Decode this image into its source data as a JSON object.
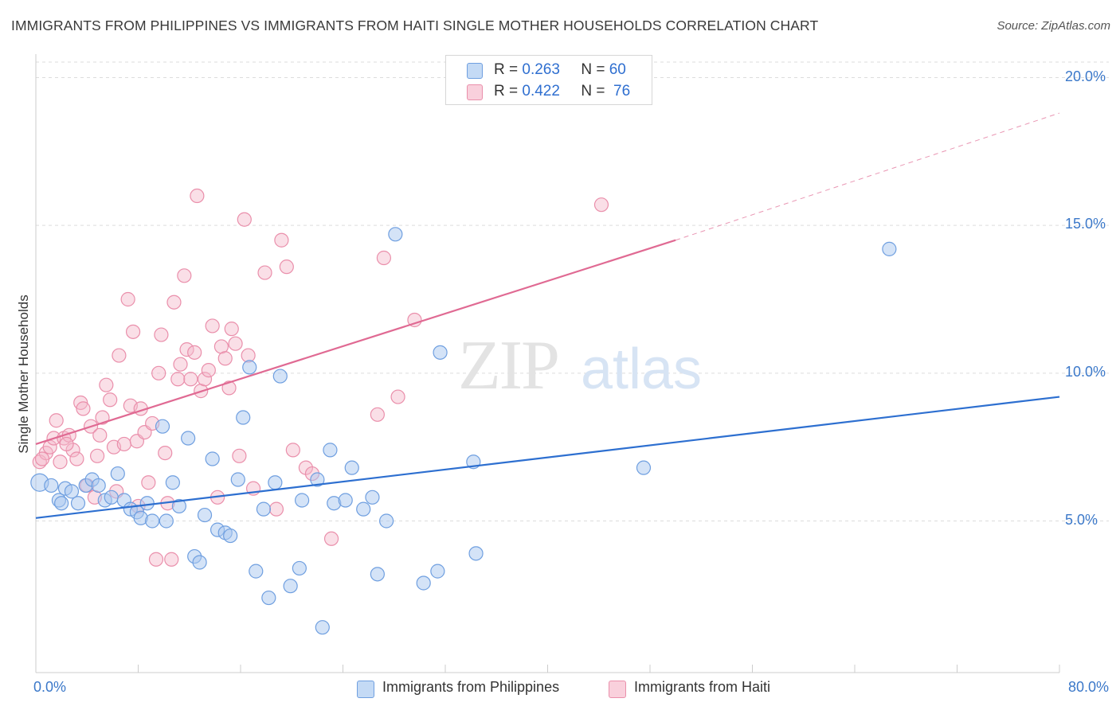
{
  "title": "IMMIGRANTS FROM PHILIPPINES VS IMMIGRANTS FROM HAITI SINGLE MOTHER HOUSEHOLDS CORRELATION CHART",
  "source": "Source: ZipAtlas.com",
  "watermark": {
    "zip": "ZIP",
    "atlas": "atlas"
  },
  "legend": {
    "r_label": "R =",
    "n_label": "N =",
    "philippines": {
      "r": "0.263",
      "n": "60"
    },
    "haiti": {
      "r": "0.422",
      "n": "76"
    }
  },
  "colors": {
    "philippines_fill": "#a9c8f0",
    "philippines_stroke": "#6f9fe0",
    "philippines_line": "#2d6fd0",
    "haiti_fill": "#f5b7ca",
    "haiti_stroke": "#ea8fab",
    "haiti_line": "#e06a93",
    "axis_text": "#3b78c9",
    "grid": "#dddddd"
  },
  "chart_data": {
    "type": "scatter",
    "xlabel": "",
    "ylabel": "Single Mother Households",
    "xlim": [
      0,
      80
    ],
    "ylim": [
      0,
      20
    ],
    "x_tick_labels": [
      "0.0%",
      "80.0%"
    ],
    "y_tick_labels": [
      "5.0%",
      "10.0%",
      "15.0%",
      "20.0%"
    ],
    "y_ticks": [
      5,
      10,
      15,
      20
    ],
    "grid": true,
    "legend_position": "top-center",
    "series": [
      {
        "name": "Immigrants from Philippines",
        "trend": {
          "x0": 0,
          "y0": 5.1,
          "x1": 80,
          "y1": 9.2
        },
        "points": [
          [
            0.3,
            6.3
          ],
          [
            1.2,
            6.2
          ],
          [
            1.8,
            5.7
          ],
          [
            2.3,
            6.1
          ],
          [
            2.8,
            6.0
          ],
          [
            3.3,
            5.6
          ],
          [
            3.9,
            6.2
          ],
          [
            4.4,
            6.4
          ],
          [
            4.9,
            6.2
          ],
          [
            5.4,
            5.7
          ],
          [
            5.9,
            5.8
          ],
          [
            6.4,
            6.6
          ],
          [
            6.9,
            5.7
          ],
          [
            7.4,
            5.4
          ],
          [
            7.9,
            5.3
          ],
          [
            8.2,
            5.1
          ],
          [
            8.7,
            5.6
          ],
          [
            9.1,
            5.0
          ],
          [
            10.2,
            5.0
          ],
          [
            10.7,
            6.3
          ],
          [
            11.2,
            5.5
          ],
          [
            9.9,
            8.2
          ],
          [
            11.9,
            7.8
          ],
          [
            12.4,
            3.8
          ],
          [
            12.8,
            3.6
          ],
          [
            13.2,
            5.2
          ],
          [
            13.8,
            7.1
          ],
          [
            14.2,
            4.7
          ],
          [
            14.8,
            4.6
          ],
          [
            15.2,
            4.5
          ],
          [
            15.8,
            6.4
          ],
          [
            16.2,
            8.5
          ],
          [
            16.7,
            10.2
          ],
          [
            17.2,
            3.3
          ],
          [
            17.8,
            5.4
          ],
          [
            18.2,
            2.4
          ],
          [
            18.7,
            6.3
          ],
          [
            19.1,
            9.9
          ],
          [
            19.9,
            2.8
          ],
          [
            20.6,
            3.4
          ],
          [
            20.8,
            5.7
          ],
          [
            22.0,
            6.4
          ],
          [
            22.4,
            1.4
          ],
          [
            23.0,
            7.4
          ],
          [
            23.3,
            5.6
          ],
          [
            24.2,
            5.7
          ],
          [
            24.7,
            6.8
          ],
          [
            25.6,
            5.4
          ],
          [
            26.3,
            5.8
          ],
          [
            26.7,
            3.2
          ],
          [
            27.4,
            5.0
          ],
          [
            28.1,
            14.7
          ],
          [
            30.3,
            2.9
          ],
          [
            31.4,
            3.3
          ],
          [
            31.6,
            10.7
          ],
          [
            34.2,
            7.0
          ],
          [
            34.4,
            3.9
          ],
          [
            47.5,
            6.8
          ],
          [
            66.7,
            14.2
          ],
          [
            2.0,
            5.6
          ]
        ]
      },
      {
        "name": "Immigrants from Haiti",
        "trend": {
          "x0": 0,
          "y0": 7.6,
          "x1": 50,
          "y1": 14.5,
          "dash_x1": 80,
          "dash_y1": 18.8
        },
        "points": [
          [
            0.3,
            7.0
          ],
          [
            0.8,
            7.3
          ],
          [
            1.1,
            7.5
          ],
          [
            1.4,
            7.8
          ],
          [
            1.6,
            8.4
          ],
          [
            1.9,
            7.0
          ],
          [
            2.2,
            7.8
          ],
          [
            2.6,
            7.9
          ],
          [
            2.9,
            7.4
          ],
          [
            3.2,
            7.1
          ],
          [
            3.5,
            9.0
          ],
          [
            3.7,
            8.8
          ],
          [
            4.0,
            6.2
          ],
          [
            4.3,
            8.2
          ],
          [
            4.6,
            5.8
          ],
          [
            4.8,
            7.2
          ],
          [
            5.0,
            7.9
          ],
          [
            5.2,
            8.5
          ],
          [
            5.5,
            9.6
          ],
          [
            5.8,
            9.1
          ],
          [
            6.1,
            7.5
          ],
          [
            6.5,
            10.6
          ],
          [
            6.9,
            7.6
          ],
          [
            7.2,
            12.5
          ],
          [
            7.4,
            8.9
          ],
          [
            7.6,
            11.4
          ],
          [
            7.9,
            7.7
          ],
          [
            8.2,
            8.8
          ],
          [
            8.5,
            8.0
          ],
          [
            8.8,
            6.3
          ],
          [
            9.1,
            8.3
          ],
          [
            9.4,
            3.7
          ],
          [
            9.6,
            10.0
          ],
          [
            9.8,
            11.3
          ],
          [
            10.1,
            7.3
          ],
          [
            10.3,
            5.6
          ],
          [
            10.6,
            3.7
          ],
          [
            10.8,
            12.4
          ],
          [
            11.1,
            9.8
          ],
          [
            11.3,
            10.3
          ],
          [
            11.6,
            13.3
          ],
          [
            11.8,
            10.8
          ],
          [
            12.1,
            9.8
          ],
          [
            12.4,
            10.7
          ],
          [
            12.6,
            16.0
          ],
          [
            12.9,
            9.4
          ],
          [
            13.2,
            9.8
          ],
          [
            13.5,
            10.1
          ],
          [
            13.8,
            11.6
          ],
          [
            14.2,
            5.8
          ],
          [
            14.5,
            10.9
          ],
          [
            14.8,
            10.5
          ],
          [
            15.1,
            9.5
          ],
          [
            15.3,
            11.5
          ],
          [
            15.6,
            11.0
          ],
          [
            15.9,
            7.2
          ],
          [
            16.3,
            15.2
          ],
          [
            16.6,
            10.6
          ],
          [
            17.0,
            6.1
          ],
          [
            17.9,
            13.4
          ],
          [
            18.8,
            5.4
          ],
          [
            19.2,
            14.5
          ],
          [
            19.6,
            13.6
          ],
          [
            20.1,
            7.4
          ],
          [
            21.1,
            6.8
          ],
          [
            21.6,
            6.6
          ],
          [
            23.1,
            4.4
          ],
          [
            26.7,
            8.6
          ],
          [
            27.2,
            13.9
          ],
          [
            28.3,
            9.2
          ],
          [
            29.6,
            11.8
          ],
          [
            44.2,
            15.7
          ],
          [
            0.5,
            7.1
          ],
          [
            2.4,
            7.6
          ],
          [
            6.3,
            6.0
          ],
          [
            8.0,
            5.5
          ]
        ]
      }
    ]
  }
}
